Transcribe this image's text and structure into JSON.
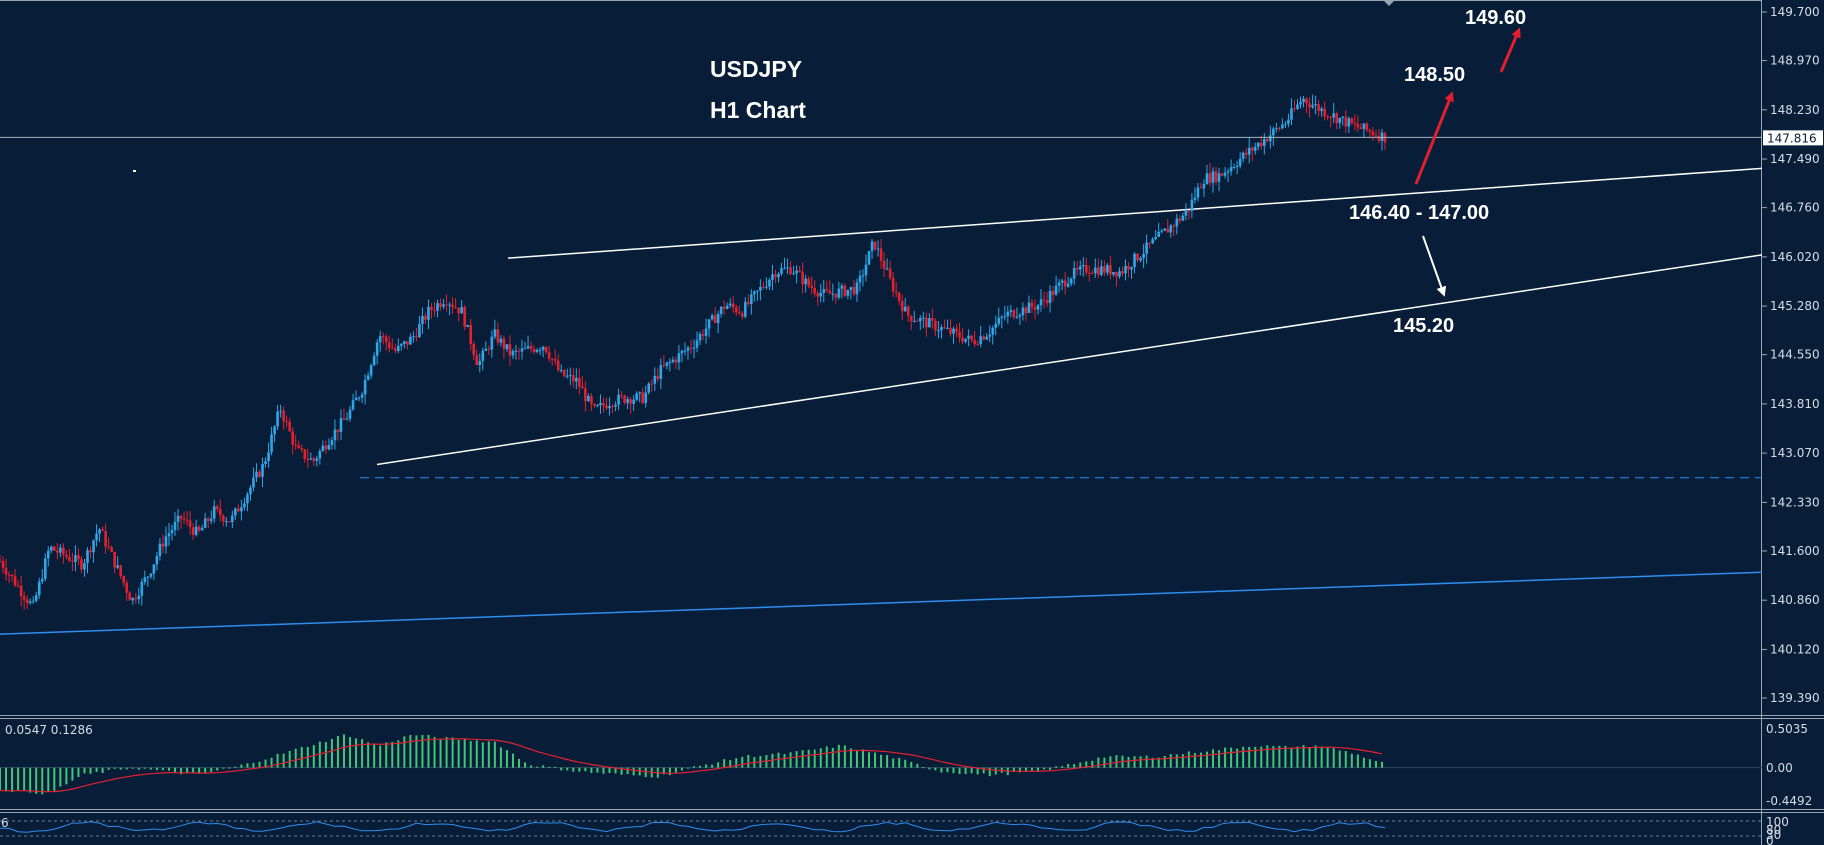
{
  "chart_data": {
    "type": "candlestick",
    "symbol": "USDJPY",
    "timeframe": "H1 Chart",
    "price_axis": {
      "ticks": [
        "149.700",
        "148.970",
        "148.230",
        "147.490",
        "146.760",
        "146.020",
        "145.280",
        "144.550",
        "143.810",
        "143.070",
        "142.330",
        "141.600",
        "140.860",
        "140.120",
        "139.390"
      ],
      "range": [
        139.06,
        149.78
      ],
      "current_price": "147.816"
    },
    "annotations": [
      {
        "text": "149.60",
        "target": 149.6
      },
      {
        "text": "148.50",
        "target": 148.5
      },
      {
        "text": "146.40 - 147.00",
        "target": 146.7
      },
      {
        "text": "145.20",
        "target": 145.2
      }
    ],
    "price_path": [
      [
        0,
        141.45
      ],
      [
        2,
        140.75
      ],
      [
        3,
        141.65
      ],
      [
        5,
        141.4
      ],
      [
        6,
        141.95
      ],
      [
        8,
        140.85
      ],
      [
        9,
        141.25
      ],
      [
        10,
        141.8
      ],
      [
        11,
        142.1
      ],
      [
        12,
        141.85
      ],
      [
        13,
        142.2
      ],
      [
        14,
        142.05
      ],
      [
        16,
        142.9
      ],
      [
        17,
        143.75
      ],
      [
        18,
        143.1
      ],
      [
        19,
        142.95
      ],
      [
        20,
        143.3
      ],
      [
        21,
        143.6
      ],
      [
        22,
        144.05
      ],
      [
        23,
        144.85
      ],
      [
        24,
        144.6
      ],
      [
        25,
        144.8
      ],
      [
        26,
        145.2
      ],
      [
        27,
        145.4
      ],
      [
        28,
        145.2
      ],
      [
        29,
        144.4
      ],
      [
        30,
        144.85
      ],
      [
        31,
        144.55
      ],
      [
        33,
        144.7
      ],
      [
        34,
        144.25
      ],
      [
        35,
        144.15
      ],
      [
        36,
        143.7
      ],
      [
        37,
        143.85
      ],
      [
        38,
        143.9
      ],
      [
        39,
        143.9
      ],
      [
        40,
        144.3
      ],
      [
        42,
        144.7
      ],
      [
        44,
        145.3
      ],
      [
        45,
        145.2
      ],
      [
        47,
        145.8
      ],
      [
        48,
        145.85
      ],
      [
        49,
        145.6
      ],
      [
        50,
        145.45
      ],
      [
        52,
        145.55
      ],
      [
        53,
        146.25
      ],
      [
        54,
        145.65
      ],
      [
        55,
        145.15
      ],
      [
        57,
        144.95
      ],
      [
        59,
        144.75
      ],
      [
        60,
        144.9
      ],
      [
        61,
        145.15
      ],
      [
        63,
        145.3
      ],
      [
        65,
        145.75
      ],
      [
        66,
        145.85
      ],
      [
        68,
        145.8
      ],
      [
        70,
        146.25
      ],
      [
        72,
        146.7
      ],
      [
        73,
        147.2
      ],
      [
        74,
        147.25
      ],
      [
        76,
        147.65
      ],
      [
        78,
        148.05
      ],
      [
        79,
        148.4
      ],
      [
        80,
        148.25
      ],
      [
        82,
        148.0
      ],
      [
        84,
        147.82
      ]
    ],
    "indicators": {
      "macd": {
        "label": "0.0547 0.1286",
        "ticks": [
          "0.5035",
          "0.00",
          "-0.4492"
        ],
        "range": [
          -0.52,
          0.62
        ],
        "histogram": [
          [
            0,
            -0.3
          ],
          [
            3,
            -0.35
          ],
          [
            5,
            -0.1
          ],
          [
            8,
            0.0
          ],
          [
            10,
            -0.05
          ],
          [
            12,
            -0.1
          ],
          [
            15,
            0.05
          ],
          [
            18,
            0.25
          ],
          [
            21,
            0.45
          ],
          [
            23,
            0.3
          ],
          [
            25,
            0.45
          ],
          [
            27,
            0.4
          ],
          [
            30,
            0.35
          ],
          [
            32,
            0.05
          ],
          [
            35,
            -0.05
          ],
          [
            38,
            -0.1
          ],
          [
            40,
            -0.12
          ],
          [
            42,
            0.0
          ],
          [
            45,
            0.15
          ],
          [
            48,
            0.2
          ],
          [
            51,
            0.3
          ],
          [
            54,
            0.15
          ],
          [
            57,
            -0.05
          ],
          [
            60,
            -0.1
          ],
          [
            63,
            -0.05
          ],
          [
            65,
            0.05
          ],
          [
            67,
            0.15
          ],
          [
            70,
            0.15
          ],
          [
            72,
            0.2
          ],
          [
            74,
            0.25
          ],
          [
            76,
            0.3
          ],
          [
            78,
            0.28
          ],
          [
            80,
            0.3
          ],
          [
            82,
            0.2
          ],
          [
            84,
            0.05
          ]
        ]
      },
      "oscillator": {
        "label": "6",
        "ticks": [
          "100",
          "80",
          "30",
          "0"
        ]
      }
    }
  }
}
